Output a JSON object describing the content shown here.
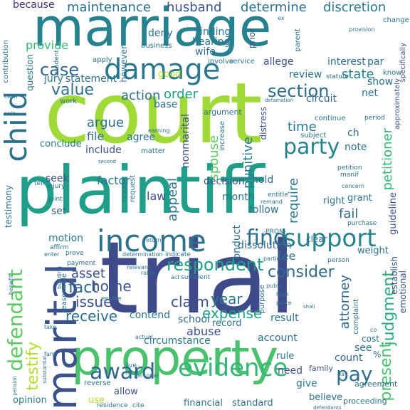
{
  "palette": {
    "dark_purple": "#440154",
    "indigo": "#3b528b",
    "blue": "#31688e",
    "teal": "#21918c",
    "green": "#35b779",
    "lime": "#90d743",
    "yellow": "#fde725"
  },
  "words": [
    {
      "text": "court",
      "color": "#a0da39"
    },
    {
      "text": "trial",
      "color": "#3e4a89"
    },
    {
      "text": "plaintiff",
      "color": "#1f9e89"
    },
    {
      "text": "marriage",
      "color": "#26828e"
    },
    {
      "text": "property",
      "color": "#4ac16d"
    },
    {
      "text": "damage",
      "color": "#2a788e"
    },
    {
      "text": "income",
      "color": "#2c728e"
    },
    {
      "text": "child",
      "color": "#2c728e"
    },
    {
      "text": "marital",
      "color": "#3b528b"
    },
    {
      "text": "evidence",
      "color": "#35b779"
    },
    {
      "text": "award",
      "color": "#31688e"
    },
    {
      "text": "support",
      "color": "#25848e"
    },
    {
      "text": "defendant",
      "color": "#5ec962"
    },
    {
      "text": "find",
      "color": "#2d708e"
    },
    {
      "text": "party",
      "color": "#25838e"
    },
    {
      "text": "respondent",
      "color": "#1fa187"
    },
    {
      "text": "case",
      "color": "#31688e"
    },
    {
      "text": "value",
      "color": "#2c728e"
    },
    {
      "text": "section",
      "color": "#2f6c8e"
    },
    {
      "text": "consider",
      "color": "#2f6c8e"
    },
    {
      "text": "judgment",
      "color": "#29af7f"
    },
    {
      "text": "testify",
      "color": "#b5de2b"
    },
    {
      "text": "pay",
      "color": "#2d708e"
    },
    {
      "text": "present",
      "color": "#4ac16d"
    },
    {
      "text": "fact",
      "color": "#31688e"
    },
    {
      "text": "home",
      "color": "#3b528b"
    },
    {
      "text": "year",
      "color": "#2a788e"
    },
    {
      "text": "expense",
      "color": "#1fa187"
    },
    {
      "text": "claim",
      "color": "#3b528b"
    },
    {
      "text": "issue",
      "color": "#3b528b"
    },
    {
      "text": "receive",
      "color": "#2c728e"
    },
    {
      "text": "asset",
      "color": "#3b528b"
    },
    {
      "text": "maintenance",
      "color": "#2c728e"
    },
    {
      "text": "husband",
      "color": "#3b528b"
    },
    {
      "text": "determine",
      "color": "#2c728e"
    },
    {
      "text": "discretion",
      "color": "#2a788e"
    },
    {
      "text": "because",
      "color": "#472d7b"
    },
    {
      "text": "order",
      "color": "#1fa187"
    },
    {
      "text": "action",
      "color": "#2c728e"
    },
    {
      "text": "state",
      "color": "#25838e"
    },
    {
      "text": "petitioner",
      "color": "#35b779"
    },
    {
      "text": "punitive",
      "color": "#2a788e"
    },
    {
      "text": "time",
      "color": "#2a788e"
    },
    {
      "text": "spouse",
      "color": "#5ec962"
    },
    {
      "text": "argue",
      "color": "#2c728e"
    },
    {
      "text": "file",
      "color": "#31688e"
    },
    {
      "text": "include",
      "color": "#3b528b"
    },
    {
      "text": "appeal",
      "color": "#2c728e"
    },
    {
      "text": "factor",
      "color": "#2a788e"
    },
    {
      "text": "law",
      "color": "#3b528b"
    },
    {
      "text": "decision",
      "color": "#3b528b"
    },
    {
      "text": "hold",
      "color": "#31688e"
    },
    {
      "text": "require",
      "color": "#2a788e"
    },
    {
      "text": "fail",
      "color": "#31688e"
    },
    {
      "text": "fee",
      "color": "#2c728e"
    },
    {
      "text": "attorney",
      "color": "#31688e"
    },
    {
      "text": "abuse",
      "color": "#3b528b"
    },
    {
      "text": "contend",
      "color": "#2c728e"
    },
    {
      "text": "school",
      "color": "#31688e"
    },
    {
      "text": "circumstance",
      "color": "#2a788e"
    },
    {
      "text": "account",
      "color": "#2c728e"
    },
    {
      "text": "need",
      "color": "#3b528b"
    },
    {
      "text": "give",
      "color": "#2a788e"
    },
    {
      "text": "count",
      "color": "#31688e"
    },
    {
      "text": "see",
      "color": "#2c728e"
    },
    {
      "text": "financial",
      "color": "#2c728e"
    },
    {
      "text": "standard",
      "color": "#2c728e"
    },
    {
      "text": "opinion",
      "color": "#2a788e"
    },
    {
      "text": "allow",
      "color": "#3b528b"
    },
    {
      "text": "use",
      "color": "#b5de2b"
    },
    {
      "text": "believe",
      "color": "#2c728e"
    },
    {
      "text": "proceeding",
      "color": "#2c728e"
    },
    {
      "text": "agreement",
      "color": "#2c728e"
    },
    {
      "text": "month",
      "color": "#2a788e"
    },
    {
      "text": "follow",
      "color": "#2c728e"
    },
    {
      "text": "conduct",
      "color": "#2c728e"
    },
    {
      "text": "dissolution",
      "color": "#31688e"
    },
    {
      "text": "set",
      "color": "#31688e"
    },
    {
      "text": "motion",
      "color": "#2a788e"
    },
    {
      "text": "seek",
      "color": "#3b528b"
    },
    {
      "text": "wife",
      "color": "#2c728e"
    },
    {
      "text": "finding",
      "color": "#2a788e"
    },
    {
      "text": "hearing",
      "color": "#2a788e"
    },
    {
      "text": "deny",
      "color": "#2c728e"
    },
    {
      "text": "statement",
      "color": "#2c728e"
    },
    {
      "text": "jury",
      "color": "#2a788e"
    },
    {
      "text": "allege",
      "color": "#3b528b"
    },
    {
      "text": "interest",
      "color": "#2c728e"
    },
    {
      "text": "review",
      "color": "#2c728e"
    },
    {
      "text": "net",
      "color": "#2c728e"
    },
    {
      "text": "show",
      "color": "#2c728e"
    },
    {
      "text": "circuit",
      "color": "#31688e"
    },
    {
      "text": "note",
      "color": "#2c728e"
    },
    {
      "text": "nonmarital",
      "color": "#3b528b"
    },
    {
      "text": "agree",
      "color": "#2c728e"
    },
    {
      "text": "conclude",
      "color": "#2a788e"
    },
    {
      "text": "base",
      "color": "#2c728e"
    },
    {
      "text": "provide",
      "color": "#35b779"
    },
    {
      "text": "question",
      "color": "#2a788e"
    },
    {
      "text": "result",
      "color": "#2c728e"
    },
    {
      "text": "rule",
      "color": "#2c728e"
    },
    {
      "text": "family",
      "color": "#3b528b"
    },
    {
      "text": "cost",
      "color": "#2c728e"
    },
    {
      "text": "record",
      "color": "#2c728e"
    },
    {
      "text": "weight",
      "color": "#2c728e"
    },
    {
      "text": "grant",
      "color": "#2c728e"
    },
    {
      "text": "right",
      "color": "#2c728e"
    },
    {
      "text": "guideline",
      "color": "#3b528b"
    },
    {
      "text": "establish",
      "color": "#3b528b"
    },
    {
      "text": "clear",
      "color": "#2c728e"
    },
    {
      "text": "emotional",
      "color": "#3b528b"
    },
    {
      "text": "approximately",
      "color": "#3b528b"
    },
    {
      "text": "specifically",
      "color": "#3b528b"
    },
    {
      "text": "distress",
      "color": "#3b528b"
    },
    {
      "text": "testimony",
      "color": "#2c728e"
    },
    {
      "text": "contribution",
      "color": "#2c728e"
    },
    {
      "text": "however",
      "color": "#2c728e"
    },
    {
      "text": "good",
      "color": "#b5de2b"
    },
    {
      "text": "prior",
      "color": "#3b528b"
    },
    {
      "text": "parent",
      "color": "#2c728e"
    },
    {
      "text": "student",
      "color": "#2c728e"
    },
    {
      "text": "apply",
      "color": "#2c728e"
    },
    {
      "text": "work",
      "color": "#2c728e"
    },
    {
      "text": "involve",
      "color": "#2c728e"
    },
    {
      "text": "service",
      "color": "#2c728e"
    },
    {
      "text": "business",
      "color": "#2c728e"
    },
    {
      "text": "argument",
      "color": "#2c728e"
    },
    {
      "text": "increase",
      "color": "#2c728e"
    },
    {
      "text": "matter",
      "color": "#2c728e"
    },
    {
      "text": "subject",
      "color": "#2c728e"
    },
    {
      "text": "continue",
      "color": "#2c728e"
    },
    {
      "text": "ch",
      "color": "#2c728e"
    },
    {
      "text": "par",
      "color": "#2c728e"
    },
    {
      "text": "know",
      "color": "#2c728e"
    },
    {
      "text": "change",
      "color": "#2c728e"
    },
    {
      "text": "provision",
      "color": "#2c728e"
    },
    {
      "text": "statute",
      "color": "#2c728e"
    },
    {
      "text": "period",
      "color": "#2c728e"
    },
    {
      "text": "earning",
      "color": "#2c728e"
    },
    {
      "text": "petition",
      "color": "#2c728e"
    },
    {
      "text": "manif",
      "color": "#2c728e"
    },
    {
      "text": "concern",
      "color": "#2c728e"
    },
    {
      "text": "entitle",
      "color": "#2c728e"
    },
    {
      "text": "remand",
      "color": "#2c728e"
    },
    {
      "text": "purchase",
      "color": "#2c728e"
    },
    {
      "text": "-PRON-",
      "color": "#2c728e"
    },
    {
      "text": "request",
      "color": "#2c728e"
    },
    {
      "text": "reason",
      "color": "#2c728e"
    },
    {
      "text": "tell",
      "color": "#2c728e"
    },
    {
      "text": "injury",
      "color": "#2c728e"
    },
    {
      "text": "joint",
      "color": "#2c728e"
    },
    {
      "text": "affirm",
      "color": "#2c728e"
    },
    {
      "text": "prove",
      "color": "#2c728e"
    },
    {
      "text": "determination",
      "color": "#2c728e"
    },
    {
      "text": "indicate",
      "color": "#2c728e"
    },
    {
      "text": "return",
      "color": "#2c728e"
    },
    {
      "text": "enter",
      "color": "#2c728e"
    },
    {
      "text": "payment",
      "color": "#2c728e"
    },
    {
      "text": "relevant",
      "color": "#2c728e"
    },
    {
      "text": "parties",
      "color": "#2c728e"
    },
    {
      "text": "person",
      "color": "#2c728e"
    },
    {
      "text": "benefit",
      "color": "#2c728e"
    },
    {
      "text": "building",
      "color": "#2c728e"
    },
    {
      "text": "reasonable",
      "color": "#2c728e"
    },
    {
      "text": "raise",
      "color": "#2c728e"
    },
    {
      "text": "act",
      "color": "#2c728e"
    },
    {
      "text": "sufficient",
      "color": "#2c728e"
    },
    {
      "text": "estate",
      "color": "#2c728e"
    },
    {
      "text": "take",
      "color": "#2c728e"
    },
    {
      "text": "actual",
      "color": "#2c728e"
    },
    {
      "text": "live",
      "color": "#2c728e"
    },
    {
      "text": "total",
      "color": "#2c728e"
    },
    {
      "text": "personal",
      "color": "#2c728e"
    },
    {
      "text": "reverse",
      "color": "#2c728e"
    },
    {
      "text": "residence",
      "color": "#2c728e"
    },
    {
      "text": "cite",
      "color": "#2c728e"
    },
    {
      "text": "high",
      "color": "#2c728e"
    },
    {
      "text": "place",
      "color": "#2c728e"
    },
    {
      "text": "shall",
      "color": "#2c728e"
    },
    {
      "text": "purpose",
      "color": "#2c728e"
    },
    {
      "text": "complaint",
      "color": "#2c728e"
    },
    {
      "text": "farm",
      "color": "#2c728e"
    },
    {
      "text": "defamation",
      "color": "#2c728e"
    },
    {
      "text": "day",
      "color": "#2c728e"
    },
    {
      "text": "sale",
      "color": "#2c728e"
    },
    {
      "text": "cash",
      "color": "#2c728e"
    },
    {
      "text": "second",
      "color": "#2c728e"
    },
    {
      "text": "public",
      "color": "#2c728e"
    },
    {
      "text": "pension",
      "color": "#2c728e"
    },
    {
      "text": "defendants",
      "color": "#2c728e"
    },
    {
      "text": "substantial",
      "color": "#2c728e"
    },
    {
      "text": "%",
      "color": "#2c728e"
    },
    {
      "text": "ex",
      "color": "#2c728e"
    },
    {
      "text": "co",
      "color": "#2c728e"
    }
  ]
}
